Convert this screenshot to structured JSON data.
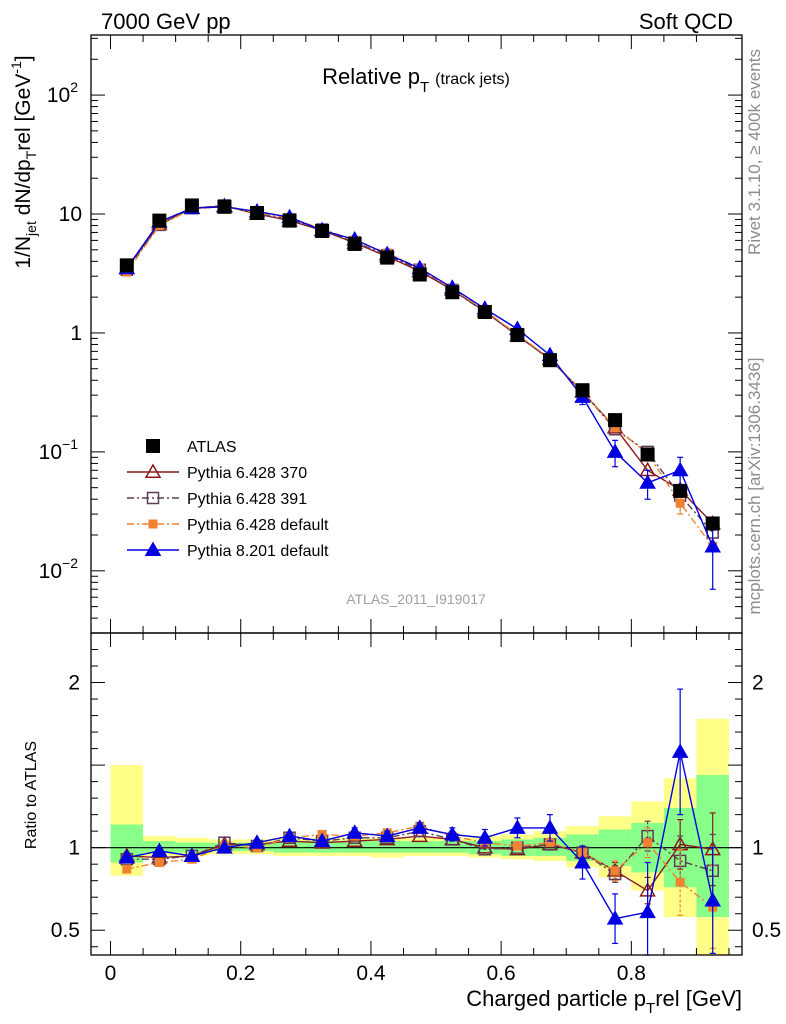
{
  "header": {
    "left": "7000 GeV pp",
    "right": "Soft QCD"
  },
  "side_labels": {
    "rivet": "Rivet 3.1.10, ≥ 400k events",
    "mcplots": "mcplots.cern.ch [arXiv:1306.3436]"
  },
  "chart_data": [
    {
      "type": "line",
      "title": "Relative p",
      "title_sub": "T",
      "title_note": "(track jets)",
      "ylabel": "1/N_jet dN/dp_T^rel [GeV^-1]",
      "ylabel_parts": {
        "a": "1/N",
        "b": "jet",
        "c": " dN/dp",
        "d": "T",
        "e": "rel [GeV",
        "f": "-1",
        "g": "]"
      },
      "yscale": "log",
      "ylim": [
        0.003,
        320
      ],
      "xlim": [
        -0.03,
        0.97
      ],
      "y_ticks": [
        {
          "v": 100,
          "base": "10",
          "exp": "2"
        },
        {
          "v": 10,
          "base": "10",
          "exp": ""
        },
        {
          "v": 1,
          "base": "1",
          "exp": ""
        },
        {
          "v": 0.1,
          "base": "10",
          "exp": "−1"
        },
        {
          "v": 0.01,
          "base": "10",
          "exp": "−2"
        }
      ],
      "analysis_label": "ATLAS_2011_I919017",
      "legend_position": "bottom-left",
      "x": [
        0.025,
        0.075,
        0.125,
        0.175,
        0.225,
        0.275,
        0.325,
        0.375,
        0.425,
        0.475,
        0.525,
        0.575,
        0.625,
        0.675,
        0.725,
        0.775,
        0.825,
        0.875,
        0.925
      ],
      "series": [
        {
          "name": "ATLAS",
          "color": "#000000",
          "marker": "square-filled",
          "line": "none",
          "values": [
            3.7,
            8.8,
            11.8,
            11.5,
            10.2,
            8.8,
            7.2,
            5.6,
            4.3,
            3.1,
            2.2,
            1.5,
            0.96,
            0.59,
            0.33,
            0.185,
            0.095,
            0.047,
            0.025
          ]
        },
        {
          "name": "Pythia 6.428 370",
          "color": "#8b1a1a",
          "marker": "triangle-open",
          "line": "solid",
          "values": [
            3.5,
            8.2,
            11.2,
            11.7,
            10.0,
            8.8,
            7.3,
            5.7,
            4.4,
            3.3,
            2.3,
            1.52,
            0.95,
            0.6,
            0.32,
            0.16,
            0.07,
            0.048,
            0.025
          ]
        },
        {
          "name": "Pythia 6.428 391",
          "color": "#5e3c58",
          "marker": "square-open",
          "line": "dashdot",
          "values": [
            3.4,
            8.1,
            11.2,
            11.8,
            10.1,
            9.0,
            7.4,
            5.8,
            4.5,
            3.4,
            2.3,
            1.5,
            0.96,
            0.6,
            0.32,
            0.155,
            0.1,
            0.043,
            0.021
          ]
        },
        {
          "name": "Pythia 6.428 default",
          "color": "#f08232",
          "marker": "square-filled-small",
          "line": "dashdot",
          "values": [
            3.25,
            8.0,
            11.0,
            11.6,
            10.2,
            9.3,
            7.5,
            6.0,
            4.7,
            3.5,
            2.35,
            1.55,
            0.97,
            0.61,
            0.32,
            0.16,
            0.097,
            0.037,
            0.016
          ]
        },
        {
          "name": "Pythia 8.201 default",
          "color": "#0000e0",
          "marker": "triangle-filled",
          "line": "solid",
          "values": [
            3.5,
            8.6,
            11.2,
            11.5,
            10.5,
            9.4,
            7.3,
            6.1,
            4.6,
            3.5,
            2.4,
            1.6,
            1.08,
            0.65,
            0.29,
            0.1,
            0.055,
            0.07,
            0.016
          ]
        }
      ],
      "errors": {
        "Pythia 8.201 default": [
          0,
          0,
          0,
          0,
          0,
          0,
          0,
          0,
          0,
          0,
          0,
          0,
          0.04,
          0.03,
          0.04,
          0.025,
          0.015,
          0.02,
          0.009
        ],
        "Pythia 6.428 default": [
          0,
          0,
          0,
          0,
          0,
          0,
          0,
          0,
          0,
          0,
          0,
          0,
          0,
          0,
          0,
          0,
          0,
          0.007,
          0
        ],
        "ATLAS": [
          0,
          0,
          0,
          0,
          0,
          0,
          0,
          0,
          0,
          0,
          0,
          0,
          0,
          0,
          0,
          0,
          0,
          0.004,
          0.003
        ]
      }
    },
    {
      "type": "line",
      "ylabel": "Ratio to ATLAS",
      "xlabel": "Charged particle p_T^rel [GeV]",
      "xlabel_parts": {
        "a": "Charged particle p",
        "b": "T",
        "c": "rel [GeV]"
      },
      "ylim": [
        0.35,
        2.3
      ],
      "xlim": [
        -0.03,
        0.97
      ],
      "y_ticks": [
        0.5,
        1,
        2
      ],
      "y_tick_labels": [
        "0.5",
        "1",
        "2"
      ],
      "x_ticks": [
        0,
        0.2,
        0.4,
        0.6,
        0.8
      ],
      "x_tick_labels": [
        "0",
        "0.2",
        "0.4",
        "0.6",
        "0.8"
      ],
      "x": [
        0.025,
        0.075,
        0.125,
        0.175,
        0.225,
        0.275,
        0.325,
        0.375,
        0.425,
        0.475,
        0.525,
        0.575,
        0.625,
        0.675,
        0.725,
        0.775,
        0.825,
        0.875,
        0.925
      ],
      "bands": {
        "yellow": [
          [
            0.83,
            1.5
          ],
          [
            0.95,
            1.07
          ],
          [
            0.95,
            1.06
          ],
          [
            0.96,
            1.05
          ],
          [
            0.96,
            1.05
          ],
          [
            0.95,
            1.06
          ],
          [
            0.95,
            1.06
          ],
          [
            0.95,
            1.06
          ],
          [
            0.94,
            1.06
          ],
          [
            0.95,
            1.06
          ],
          [
            0.95,
            1.06
          ],
          [
            0.94,
            1.07
          ],
          [
            0.93,
            1.08
          ],
          [
            0.92,
            1.1
          ],
          [
            0.88,
            1.13
          ],
          [
            0.82,
            1.19
          ],
          [
            0.74,
            1.28
          ],
          [
            0.58,
            1.42
          ],
          [
            0.35,
            1.78
          ]
        ],
        "green": [
          [
            0.91,
            1.14
          ],
          [
            0.97,
            1.04
          ],
          [
            0.97,
            1.03
          ],
          [
            0.98,
            1.03
          ],
          [
            0.98,
            1.03
          ],
          [
            0.97,
            1.04
          ],
          [
            0.97,
            1.04
          ],
          [
            0.97,
            1.04
          ],
          [
            0.97,
            1.04
          ],
          [
            0.97,
            1.04
          ],
          [
            0.97,
            1.04
          ],
          [
            0.96,
            1.04
          ],
          [
            0.95,
            1.05
          ],
          [
            0.95,
            1.06
          ],
          [
            0.92,
            1.08
          ],
          [
            0.89,
            1.11
          ],
          [
            0.85,
            1.15
          ],
          [
            0.76,
            1.24
          ],
          [
            0.58,
            1.44
          ]
        ]
      },
      "series": [
        {
          "name": "Pythia 6.428 370",
          "color": "#8b1a1a",
          "marker": "triangle-open",
          "line": "solid",
          "values": [
            0.95,
            0.94,
            0.95,
            1.02,
            1.02,
            1.04,
            1.03,
            1.04,
            1.05,
            1.07,
            1.05,
            1.0,
            0.99,
            1.02,
            0.97,
            0.86,
            0.74,
            1.02,
            0.99
          ],
          "errors": [
            0,
            0,
            0,
            0,
            0,
            0,
            0,
            0,
            0,
            0,
            0,
            0,
            0,
            0,
            0,
            0.05,
            0.08,
            0.15,
            0.22
          ]
        },
        {
          "name": "Pythia 6.428 391",
          "color": "#5e3c58",
          "marker": "square-open",
          "line": "dashdot",
          "values": [
            0.93,
            0.93,
            0.95,
            1.03,
            1.01,
            1.06,
            1.04,
            1.06,
            1.06,
            1.1,
            1.05,
            0.99,
            1.0,
            1.02,
            0.97,
            0.84,
            1.07,
            0.92,
            0.86
          ],
          "errors": [
            0,
            0,
            0,
            0,
            0,
            0,
            0,
            0,
            0,
            0,
            0,
            0,
            0,
            0,
            0,
            0.05,
            0.09,
            0.15,
            0.22
          ]
        },
        {
          "name": "Pythia 6.428 default",
          "color": "#f08232",
          "marker": "square-filled-small",
          "line": "dashdot",
          "values": [
            0.87,
            0.91,
            0.93,
            1.01,
            1.0,
            1.06,
            1.08,
            1.07,
            1.09,
            1.13,
            1.07,
            1.03,
            1.01,
            1.03,
            0.97,
            0.86,
            1.03,
            0.79,
            0.64
          ],
          "errors": [
            0,
            0,
            0,
            0,
            0,
            0,
            0,
            0,
            0,
            0,
            0,
            0,
            0,
            0,
            0,
            0.06,
            0.09,
            0.2,
            0.25
          ]
        },
        {
          "name": "Pythia 8.201 default",
          "color": "#0000e0",
          "marker": "triangle-filled",
          "line": "solid",
          "values": [
            0.94,
            0.98,
            0.95,
            1.0,
            1.03,
            1.07,
            1.04,
            1.09,
            1.07,
            1.12,
            1.08,
            1.06,
            1.12,
            1.12,
            0.91,
            0.57,
            0.61,
            1.58,
            0.68
          ],
          "errors": [
            0.03,
            0.02,
            0.02,
            0.02,
            0.02,
            0.02,
            0.02,
            0.03,
            0.03,
            0.03,
            0.04,
            0.05,
            0.06,
            0.08,
            0.1,
            0.15,
            0.3,
            0.38,
            0.32
          ]
        }
      ]
    }
  ]
}
